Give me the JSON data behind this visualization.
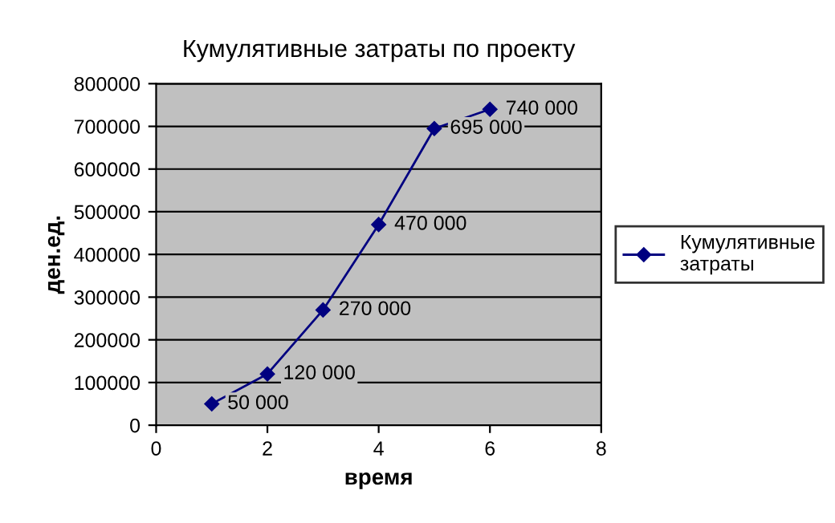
{
  "chart_data": {
    "type": "line",
    "title": "Кумулятивные затраты по проекту",
    "xlabel": "время",
    "ylabel": "ден.ед.",
    "x": [
      1,
      2,
      3,
      4,
      5,
      6
    ],
    "series": [
      {
        "name": "Кумулятивные затраты",
        "color": "#000080",
        "values": [
          50000,
          120000,
          270000,
          470000,
          695000,
          740000
        ],
        "value_labels": [
          "50 000",
          "120 000",
          "270 000",
          "470 000",
          "695 000",
          "740 000"
        ]
      }
    ],
    "xlim": [
      0,
      8
    ],
    "xticks": [
      0,
      2,
      4,
      6,
      8
    ],
    "ylim": [
      0,
      800000
    ],
    "yticks": [
      0,
      100000,
      200000,
      300000,
      400000,
      500000,
      600000,
      700000,
      800000
    ],
    "grid": "y",
    "legend": "right",
    "marker": "diamond",
    "line_style": "solid"
  }
}
